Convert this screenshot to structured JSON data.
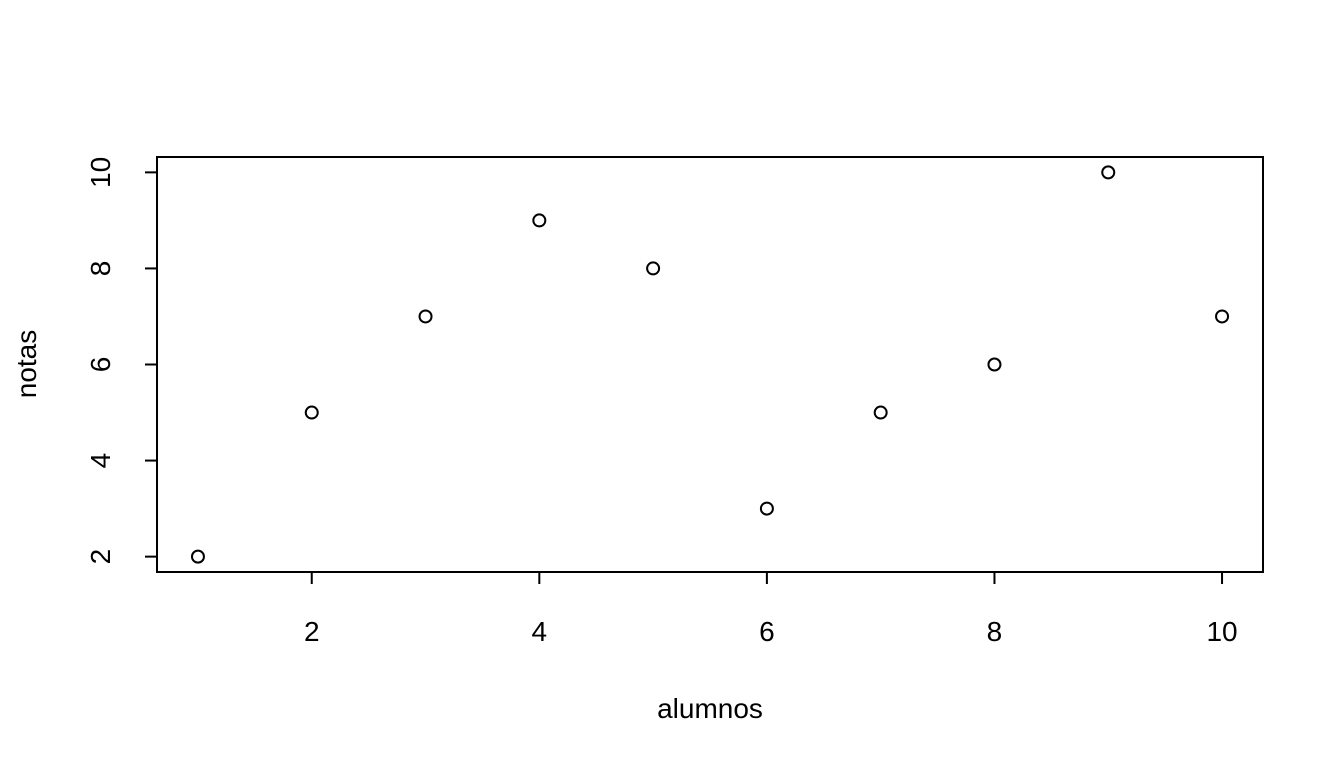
{
  "chart_data": {
    "type": "scatter",
    "title": "",
    "xlabel": "alumnos",
    "ylabel": "notas",
    "x": [
      1,
      2,
      3,
      4,
      5,
      6,
      7,
      8,
      9,
      10
    ],
    "y": [
      2,
      5,
      7,
      9,
      8,
      3,
      5,
      6,
      10,
      7
    ],
    "xlim": [
      0.64,
      10.36
    ],
    "ylim": [
      1.68,
      10.32
    ],
    "x_ticks": [
      2,
      4,
      6,
      8,
      10
    ],
    "y_ticks": [
      2,
      4,
      6,
      8,
      10
    ],
    "x_tick_labels": [
      "2",
      "4",
      "6",
      "8",
      "10"
    ],
    "y_tick_labels": [
      "2",
      "4",
      "6",
      "8",
      "10"
    ],
    "marker": "open-circle",
    "point_color": "#000000",
    "grid": false,
    "legend": "none"
  }
}
